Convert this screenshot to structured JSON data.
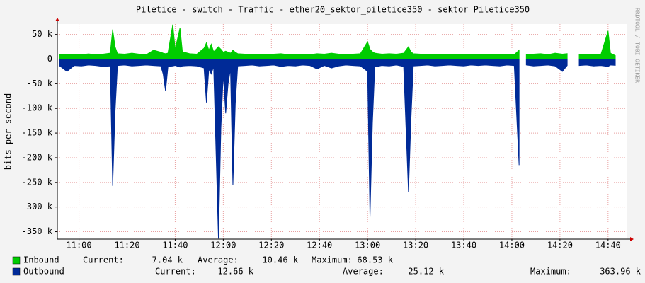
{
  "chart_data": {
    "type": "area",
    "title": "Piletice - switch - Traffic - ether20_sektor_piletice350 - sektor Piletice350",
    "y_label": "bits per second",
    "watermark": "RRDTOOL / TOBI OETIKER",
    "xlim": [
      "10:51",
      "14:48"
    ],
    "xticks": [
      "11:00",
      "11:20",
      "11:40",
      "12:00",
      "12:20",
      "12:40",
      "13:00",
      "13:20",
      "13:40",
      "14:00",
      "14:20",
      "14:40"
    ],
    "ylim": [
      -365000,
      71000
    ],
    "yticks": [
      {
        "value": 50000,
        "label": "50 k"
      },
      0,
      {
        "value": -50000,
        "label": "-50 k"
      },
      {
        "value": -100000,
        "label": "-100 k"
      },
      {
        "value": -150000,
        "label": "-150 k"
      },
      {
        "value": -200000,
        "label": "-200 k"
      },
      {
        "value": -250000,
        "label": "-250 k"
      },
      {
        "value": -300000,
        "label": "-300 k"
      },
      {
        "value": -350000,
        "label": "-350 k"
      }
    ],
    "grid": true,
    "legend_labels": [
      "Current:",
      "Average:",
      "Maximum:"
    ],
    "x": [
      "10:52",
      "10:55",
      "10:58",
      "11:01",
      "11:04",
      "11:07",
      "11:10",
      "11:13",
      "11:14",
      "11:15",
      "11:16",
      "11:19",
      "11:22",
      "11:25",
      "11:28",
      "11:31",
      "11:34",
      "11:35",
      "11:36",
      "11:37",
      "11:39",
      "11:40",
      "11:42",
      "11:43",
      "11:46",
      "11:49",
      "11:52",
      "11:53",
      "11:54",
      "11:55",
      "11:56",
      "11:58",
      "11:59",
      "12:00",
      "12:01",
      "12:02",
      "12:03",
      "12:04",
      "12:05",
      "12:06",
      "12:09",
      "12:12",
      "12:15",
      "12:18",
      "12:21",
      "12:24",
      "12:27",
      "12:30",
      "12:33",
      "12:36",
      "12:39",
      "12:42",
      "12:45",
      "12:48",
      "12:51",
      "12:54",
      "12:57",
      "13:00",
      "13:01",
      "13:02",
      "13:03",
      "13:06",
      "13:09",
      "13:12",
      "13:15",
      "13:17",
      "13:18",
      "13:19",
      "13:22",
      "13:25",
      "13:28",
      "13:31",
      "13:34",
      "13:37",
      "13:40",
      "13:43",
      "13:46",
      "13:49",
      "13:52",
      "13:55",
      "13:58",
      "14:01",
      "14:03",
      "14:04",
      "14:06",
      "14:09",
      "14:12",
      "14:15",
      "14:18",
      "14:21",
      "14:23",
      "14:25",
      "14:28",
      "14:31",
      "14:34",
      "14:37",
      "14:40",
      "14:41",
      "14:43"
    ],
    "series": [
      {
        "name": "Inbound",
        "color": "#00cc00",
        "stats": [
          "7.04 k",
          "10.46 k",
          "68.53 k"
        ],
        "values": [
          9000,
          10000,
          9500,
          9000,
          10500,
          9000,
          10000,
          12000,
          60000,
          25000,
          11000,
          10000,
          12000,
          10000,
          9000,
          18000,
          14000,
          12000,
          11000,
          12000,
          70000,
          20000,
          63000,
          15000,
          11000,
          10000,
          22000,
          33000,
          18000,
          30000,
          15000,
          25000,
          20000,
          14000,
          16000,
          14000,
          12000,
          18000,
          14000,
          11000,
          10000,
          9000,
          10000,
          9000,
          10000,
          11000,
          9000,
          10000,
          10000,
          9000,
          11000,
          10000,
          12000,
          10000,
          9000,
          10000,
          11000,
          35000,
          20000,
          15000,
          12000,
          10000,
          11000,
          10000,
          12000,
          25000,
          15000,
          11000,
          10000,
          9000,
          10000,
          9000,
          10000,
          9000,
          10000,
          9000,
          10000,
          9000,
          10000,
          9000,
          10000,
          9000,
          18000,
          null,
          9000,
          10000,
          11000,
          9000,
          12000,
          10000,
          11000,
          null,
          10000,
          9000,
          10000,
          9000,
          57000,
          12000,
          7040
        ]
      },
      {
        "name": "Outbound",
        "color": "#002a97",
        "stats": [
          "12.66 k",
          "25.12 k",
          "363.96 k"
        ],
        "values": [
          -14000,
          -25000,
          -13000,
          -14000,
          -12000,
          -13000,
          -15000,
          -14000,
          -257000,
          -105000,
          -13000,
          -12000,
          -14000,
          -13000,
          -12000,
          -13000,
          -14000,
          -30000,
          -65000,
          -15000,
          -14000,
          -13000,
          -16000,
          -14000,
          -13000,
          -14000,
          -18000,
          -88000,
          -20000,
          -30000,
          -15000,
          -363960,
          -140000,
          -30000,
          -110000,
          -50000,
          -20000,
          -255000,
          -90000,
          -14000,
          -13000,
          -12000,
          -14000,
          -13000,
          -12000,
          -15000,
          -13000,
          -14000,
          -12000,
          -13000,
          -20000,
          -13000,
          -18000,
          -14000,
          -12000,
          -13000,
          -14000,
          -25000,
          -320000,
          -130000,
          -16000,
          -13000,
          -14000,
          -12000,
          -15000,
          -270000,
          -125000,
          -14000,
          -13000,
          -12000,
          -14000,
          -13000,
          -12000,
          -13000,
          -14000,
          -12000,
          -13000,
          -12000,
          -13000,
          -14000,
          -12000,
          -13000,
          -215000,
          null,
          -12000,
          -14000,
          -13000,
          -12000,
          -14000,
          -25000,
          -13000,
          null,
          -13000,
          -12000,
          -14000,
          -13000,
          -15000,
          -12000,
          -12660
        ]
      }
    ]
  }
}
